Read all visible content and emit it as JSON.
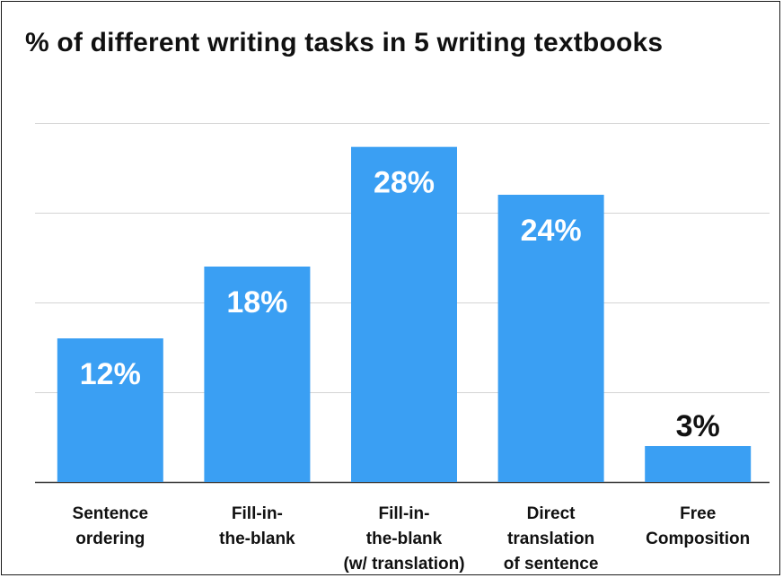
{
  "chart_data": {
    "type": "bar",
    "title": "% of different writing tasks in 5 writing textbooks",
    "categories": [
      [
        "Sentence",
        "ordering"
      ],
      [
        "Fill-in-",
        "the-blank"
      ],
      [
        "Fill-in-",
        "the-blank",
        "(w/ translation)"
      ],
      [
        "Direct",
        "translation",
        "of sentence"
      ],
      [
        "Free",
        "Composition"
      ]
    ],
    "values": [
      12,
      18,
      28,
      24,
      3
    ],
    "data_labels": [
      "12%",
      "18%",
      "28%",
      "24%",
      "3%"
    ],
    "ylim": [
      0,
      30
    ],
    "grid": true,
    "bar_color": "#3a9ff3",
    "label_inside_color": "#ffffff",
    "label_outside_color": "#111111",
    "gridline_color": "#d4d4d4",
    "axis_color": "#333333"
  }
}
